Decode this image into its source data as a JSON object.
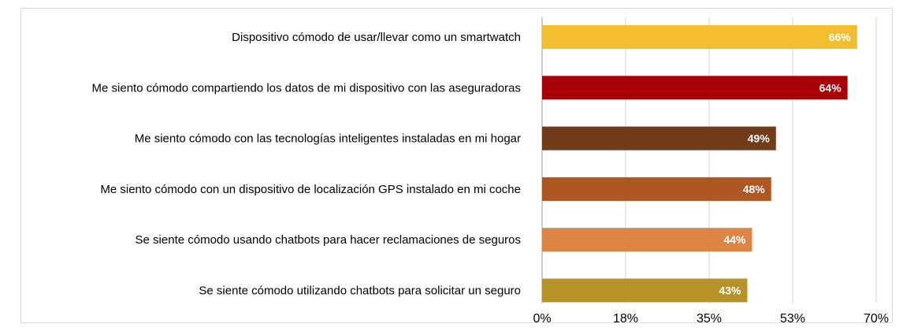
{
  "chart_data": {
    "type": "bar",
    "orientation": "horizontal",
    "title": "",
    "xlabel": "",
    "ylabel": "",
    "categories": [
      "Dispositivo cómodo de usar/llevar como un smartwatch",
      "Me siento cómodo compartiendo los datos de mi dispositivo con las aseguradoras",
      "Me siento cómodo con las tecnologías inteligentes instaladas en mi hogar",
      "Me siento cómodo con un dispositivo de localización GPS instalado en mi coche",
      "Se siente cómodo usando chatbots para hacer reclamaciones de seguros",
      "Se siente cómodo utilizando chatbots para solicitar un seguro"
    ],
    "values": [
      66,
      64,
      49,
      48,
      44,
      43
    ],
    "value_labels": [
      "66%",
      "64%",
      "49%",
      "48%",
      "44%",
      "43%"
    ],
    "colors": [
      "#F2BE2F",
      "#AA0008",
      "#703B18",
      "#AF5621",
      "#DC8544",
      "#B79228"
    ],
    "xlim": [
      0,
      70
    ],
    "x_ticks": [
      0,
      17.5,
      35,
      52.5,
      70
    ],
    "x_tick_labels": [
      "0%",
      "18%",
      "35%",
      "53%",
      "70%"
    ],
    "grid": true,
    "legend": "none"
  }
}
